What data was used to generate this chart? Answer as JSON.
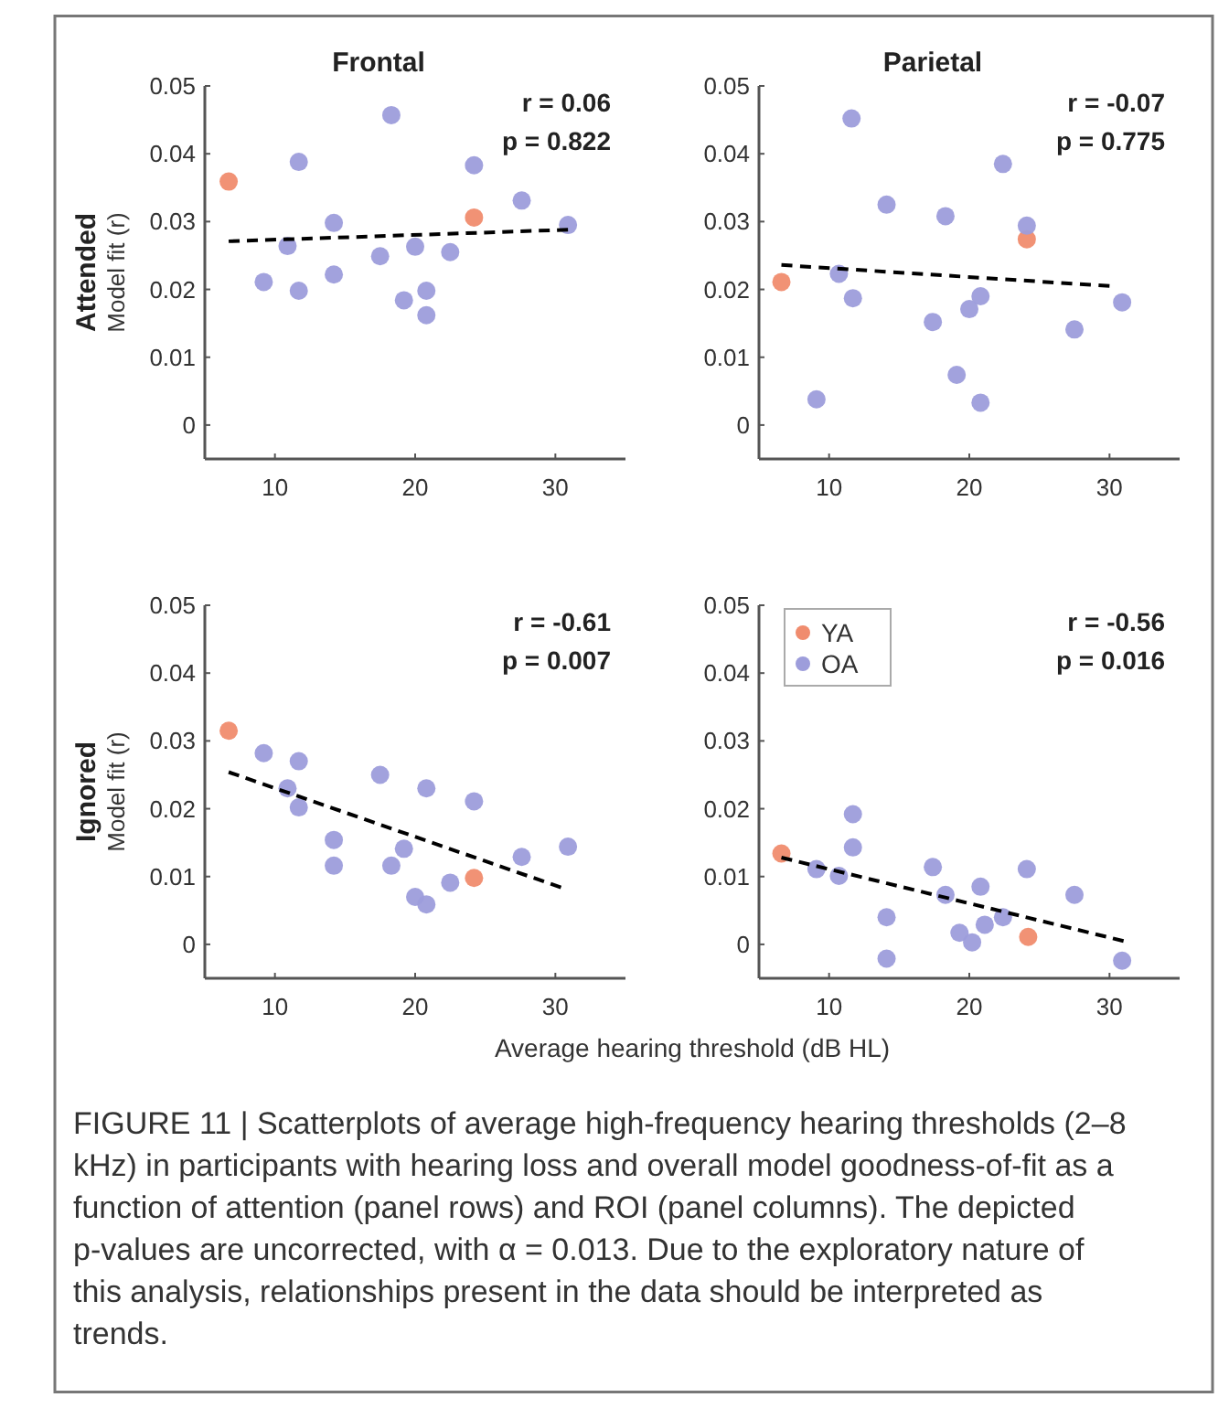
{
  "chart_data": [
    {
      "type": "scatter",
      "title": "Frontal",
      "ylabel": "Model fit (r)",
      "xlim": [
        5,
        35
      ],
      "ylim": [
        -0.005,
        0.05
      ],
      "xticks": [
        10,
        20,
        30
      ],
      "yticks": [
        0,
        0.01,
        0.02,
        0.03,
        0.04,
        0.05
      ],
      "marker": "circle",
      "annotations": [
        "r = 0.06",
        "p = 0.822",
        "Attended"
      ],
      "series": [
        {
          "color": "#f08c6e",
          "x": [
            6.7,
            24.2
          ],
          "values": [
            0.0359,
            0.0306
          ]
        },
        {
          "color": "#9d9ddb",
          "x": [
            9.2,
            11.7,
            10.9,
            11.7,
            14.2,
            14.2,
            17.5,
            18.3,
            19.2,
            20.0,
            20.8,
            20.8,
            22.5,
            24.2,
            27.6,
            30.9
          ],
          "values": [
            0.0211,
            0.0388,
            0.0264,
            0.0198,
            0.0298,
            0.0222,
            0.0249,
            0.0457,
            0.0184,
            0.0263,
            0.0198,
            0.0162,
            0.0255,
            0.0383,
            0.0331,
            0.0295
          ]
        },
        {
          "type": "line",
          "marker": "none",
          "color": "#000000",
          "line_style": "dashed",
          "x": [
            6.7,
            30.9
          ],
          "values": [
            0.0271,
            0.0288
          ]
        }
      ]
    },
    {
      "type": "scatter",
      "title": "Parietal",
      "xlim": [
        5,
        35
      ],
      "ylim": [
        -0.005,
        0.05
      ],
      "xticks": [
        10,
        20,
        30
      ],
      "yticks": [
        0,
        0.01,
        0.02,
        0.03,
        0.04,
        0.05
      ],
      "marker": "circle",
      "annotations": [
        "r = -0.07",
        "p = 0.775"
      ],
      "series": [
        {
          "color": "#f08c6e",
          "x": [
            6.6,
            24.1
          ],
          "values": [
            0.0211,
            0.0274
          ]
        },
        {
          "color": "#9d9ddb",
          "x": [
            9.1,
            11.6,
            10.7,
            11.7,
            14.1,
            17.4,
            18.3,
            19.1,
            20.0,
            20.8,
            20.8,
            22.4,
            24.1,
            27.5,
            30.9
          ],
          "values": [
            0.0038,
            0.0452,
            0.0223,
            0.0187,
            0.0325,
            0.0152,
            0.0308,
            0.0074,
            0.0171,
            0.019,
            0.0033,
            0.0385,
            0.0294,
            0.0141,
            0.0181
          ]
        },
        {
          "type": "line",
          "marker": "none",
          "color": "#000000",
          "line_style": "dashed",
          "x": [
            6.6,
            30.0
          ],
          "values": [
            0.0236,
            0.0205
          ]
        }
      ]
    },
    {
      "type": "scatter",
      "ylabel": "Model fit (r)",
      "xlim": [
        5,
        35
      ],
      "ylim": [
        -0.005,
        0.05
      ],
      "xticks": [
        10,
        20,
        30
      ],
      "yticks": [
        0,
        0.01,
        0.02,
        0.03,
        0.04,
        0.05
      ],
      "marker": "circle",
      "annotations": [
        "r = -0.61",
        "p = 0.007",
        "Ignored"
      ],
      "series": [
        {
          "color": "#f08c6e",
          "x": [
            6.7,
            24.2
          ],
          "values": [
            0.0315,
            0.0098
          ]
        },
        {
          "color": "#9d9ddb",
          "x": [
            9.2,
            11.7,
            10.9,
            11.7,
            14.2,
            14.2,
            17.5,
            19.2,
            18.3,
            20.0,
            20.8,
            20.8,
            22.5,
            24.2,
            27.6,
            30.9
          ],
          "values": [
            0.0282,
            0.027,
            0.023,
            0.0202,
            0.0154,
            0.0116,
            0.025,
            0.0141,
            0.0116,
            0.007,
            0.0059,
            0.023,
            0.0091,
            0.0211,
            0.0129,
            0.0144
          ]
        },
        {
          "type": "line",
          "marker": "none",
          "color": "#000000",
          "line_style": "dashed",
          "x": [
            6.7,
            30.4
          ],
          "values": [
            0.0254,
            0.0084
          ]
        }
      ]
    },
    {
      "type": "scatter",
      "xlabel": "Average hearing threshold (dB HL)",
      "xlim": [
        5,
        35
      ],
      "ylim": [
        -0.005,
        0.05
      ],
      "xticks": [
        10,
        20,
        30
      ],
      "yticks": [
        0,
        0.01,
        0.02,
        0.03,
        0.04,
        0.05
      ],
      "marker": "circle",
      "legend": "top left",
      "annotations": [
        "r = -0.56",
        "p = 0.016",
        "FIGURE 11 | Scatterplots of average high-frequency hearing thresholds (2–8 kHz) in participants with hearing loss and overall model goodness-of-fit as a function of attention (panel rows) and ROI (panel columns). The depicted p-values are uncorrected, with α = 0.013. Due to the exploratory nature of this analysis, relationships present in the data should be interpreted as trends."
      ],
      "series": [
        {
          "name": "YA",
          "color": "#f08c6e",
          "x": [
            6.6,
            24.2
          ],
          "values": [
            0.0134,
            0.0011
          ]
        },
        {
          "name": "OA",
          "color": "#9d9ddb",
          "x": [
            9.1,
            10.7,
            11.7,
            11.7,
            14.1,
            14.1,
            17.4,
            18.3,
            19.3,
            20.2,
            20.8,
            21.1,
            22.4,
            24.1,
            27.5,
            30.9
          ],
          "values": [
            0.0111,
            0.0101,
            0.0192,
            0.0143,
            0.004,
            -0.0021,
            0.0114,
            0.0073,
            0.0017,
            0.0003,
            0.0085,
            0.0029,
            0.004,
            0.0111,
            0.0073,
            -0.0024
          ]
        },
        {
          "type": "line",
          "marker": "none",
          "color": "#000000",
          "line_style": "dashed",
          "x": [
            6.6,
            31.0
          ],
          "values": [
            0.0128,
            0.0005
          ]
        }
      ]
    }
  ]
}
